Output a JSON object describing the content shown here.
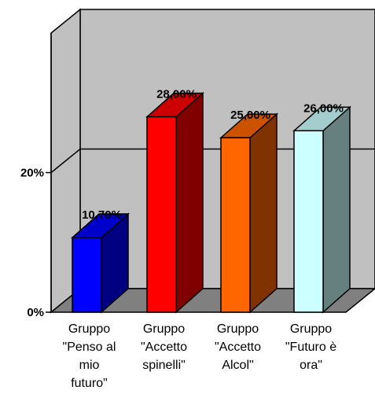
{
  "chart_data": {
    "type": "bar",
    "categories": [
      [
        "Gruppo",
        "\"Penso al",
        "mio",
        "futuro\""
      ],
      [
        "Gruppo",
        "\"Accetto",
        "spinelli\""
      ],
      [
        "Gruppo",
        "\"Accetto",
        "Alcol\""
      ],
      [
        "Gruppo",
        "\"Futuro è",
        "ora\""
      ]
    ],
    "values": [
      10.7,
      28.0,
      25.0,
      26.0
    ],
    "data_labels": [
      "10,70%",
      "28,00%",
      "25,00%",
      "26,00%"
    ],
    "yticks": [
      0,
      20
    ],
    "ytick_labels": [
      "0%",
      "20%"
    ],
    "ylim": [
      0,
      40
    ],
    "grid": true,
    "three_d": true,
    "colors": {
      "wall": "#c0c0c0",
      "floor": "#808080",
      "bars": [
        {
          "front": "#0000ff",
          "side": "#000080",
          "top": "#0000cc"
        },
        {
          "front": "#ff0000",
          "side": "#800000",
          "top": "#cc0000"
        },
        {
          "front": "#ff6600",
          "side": "#803300",
          "top": "#cc5200"
        },
        {
          "front": "#ccffff",
          "side": "#668080",
          "top": "#a3cccc"
        }
      ]
    }
  }
}
